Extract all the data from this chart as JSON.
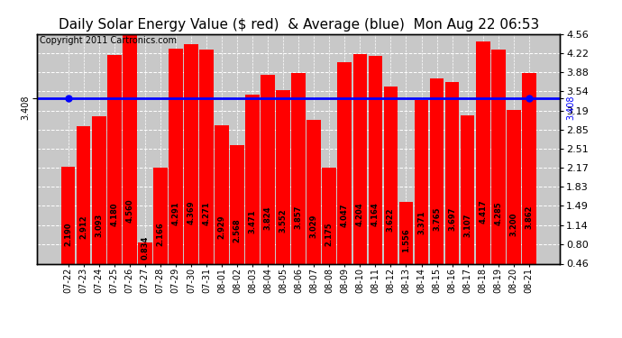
{
  "title": "Daily Solar Energy Value ($ red)  & Average (blue)  Mon Aug 22 06:53",
  "copyright": "Copyright 2011 Cartronics.com",
  "categories": [
    "07-22",
    "07-23",
    "07-24",
    "07-25",
    "07-26",
    "07-27",
    "07-28",
    "07-29",
    "07-30",
    "07-31",
    "08-01",
    "08-02",
    "08-03",
    "08-04",
    "08-05",
    "08-06",
    "08-07",
    "08-08",
    "08-09",
    "08-10",
    "08-11",
    "08-12",
    "08-13",
    "08-14",
    "08-15",
    "08-16",
    "08-17",
    "08-18",
    "08-19",
    "08-20",
    "08-21"
  ],
  "values": [
    2.19,
    2.912,
    3.093,
    4.18,
    4.56,
    0.834,
    2.166,
    4.291,
    4.369,
    4.271,
    2.929,
    2.568,
    3.471,
    3.824,
    3.552,
    3.857,
    3.029,
    2.175,
    4.047,
    4.204,
    4.164,
    3.622,
    1.556,
    3.371,
    3.765,
    3.697,
    3.107,
    4.417,
    4.285,
    3.2,
    3.862
  ],
  "average": 3.408,
  "bar_color": "#ff0000",
  "avg_color": "#0000ff",
  "background_color": "#c8c8c8",
  "plot_bg_color": "#c8c8c8",
  "outer_bg_color": "#ffffff",
  "grid_color": "#ffffff",
  "ylim": [
    0.46,
    4.56
  ],
  "yticks_right": [
    0.46,
    0.8,
    1.14,
    1.49,
    1.83,
    2.17,
    2.51,
    2.85,
    3.19,
    3.54,
    3.88,
    4.22,
    4.56
  ],
  "title_fontsize": 11,
  "copyright_fontsize": 7,
  "bar_label_fontsize": 6,
  "tick_fontsize": 8,
  "avg_label_fontsize": 7
}
